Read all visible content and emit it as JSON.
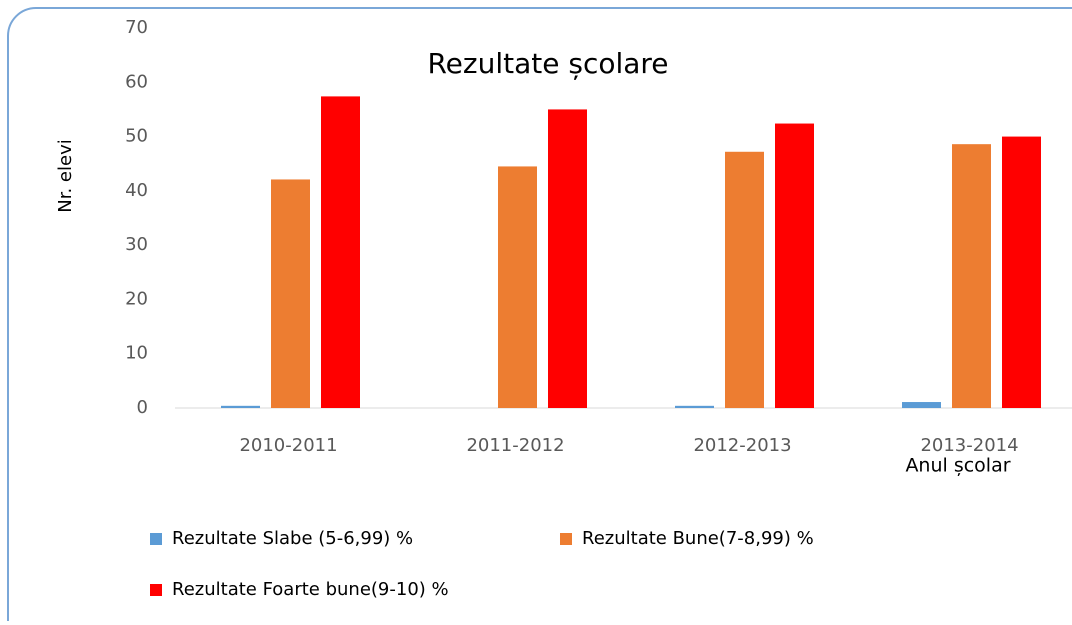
{
  "chart_data": {
    "type": "bar",
    "title": "Rezultate școlare",
    "y_label": "Nr. elevi",
    "x_label": "Anul școlar",
    "categories": [
      "2010-2011",
      "2011-2012",
      "2012-2013",
      "2013-2014"
    ],
    "series": [
      {
        "name": "Rezultate Slabe (5-6,99) %",
        "color": "#5b9bd5",
        "values": [
          0.4,
          0,
          0.4,
          1.1
        ]
      },
      {
        "name": "Rezultate Bune(7-8,99) %",
        "color": "#ed7d31",
        "values": [
          42.1,
          44.5,
          47.2,
          48.6
        ]
      },
      {
        "name": "Rezultate Foarte bune(9-10) %",
        "color": "#ff0000",
        "values": [
          57.4,
          55,
          52.4,
          50
        ]
      }
    ],
    "ylim": [
      0,
      70
    ],
    "yticks": [
      0,
      10,
      20,
      30,
      40,
      50,
      60,
      70
    ],
    "grid": false,
    "legend": "bottom"
  }
}
